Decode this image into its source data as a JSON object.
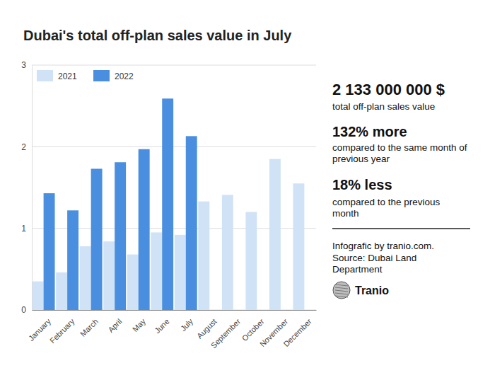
{
  "chart_data": {
    "type": "bar",
    "title": "Dubai's total off-plan sales value in July",
    "categories": [
      "January",
      "February",
      "March",
      "April",
      "May",
      "June",
      "July",
      "August",
      "September",
      "October",
      "November",
      "December"
    ],
    "series": [
      {
        "name": "2021",
        "color": "#cfe2f6",
        "values": [
          0.35,
          0.46,
          0.78,
          0.84,
          0.68,
          0.95,
          0.92,
          1.33,
          1.41,
          1.2,
          1.85,
          1.55
        ]
      },
      {
        "name": "2022",
        "color": "#4a8fdf",
        "values": [
          1.43,
          1.22,
          1.73,
          1.81,
          1.97,
          2.59,
          2.13,
          null,
          null,
          null,
          null,
          null
        ]
      }
    ],
    "ylim": [
      0,
      3
    ],
    "yticks": [
      0,
      1,
      2,
      3
    ],
    "grid": true,
    "legend": "top-left",
    "annotations": [
      "2 133 000 000 $",
      "total off-plan sales value",
      "132% more",
      "compared to the same month of previous year",
      "18% less",
      "compared to the previous month",
      "Infografic by tranio.com.",
      "Source: Dubai Land Department",
      "Tranio"
    ]
  }
}
